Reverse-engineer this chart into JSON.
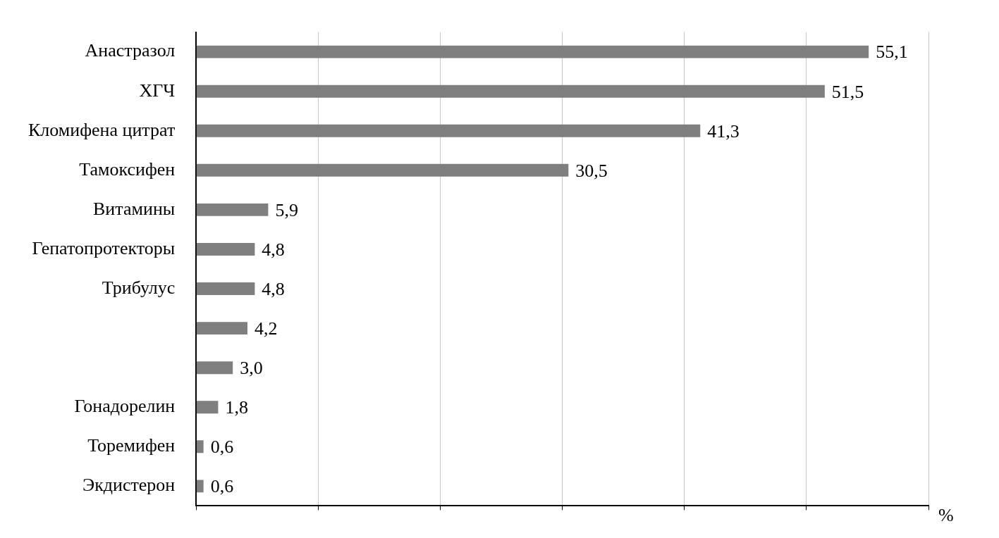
{
  "chart_data": {
    "type": "bar",
    "orientation": "horizontal",
    "categories": [
      "Анастразол",
      "ХГЧ",
      "Кломифена цитрат",
      "Тамоксифен",
      "Витамины",
      "Гепатопротекторы",
      "Трибулус",
      null,
      null,
      "Гонадорелин",
      "Торемифен",
      "Экдистерон"
    ],
    "values": [
      55.1,
      51.5,
      41.3,
      30.5,
      5.9,
      4.8,
      4.8,
      4.2,
      3.0,
      1.8,
      0.6,
      0.6
    ],
    "value_labels": [
      "55,1",
      "51,5",
      "41,3",
      "30,5",
      "5,9",
      "4,8",
      "4,8",
      "4,2",
      "3,0",
      "1,8",
      "0,6",
      "0,6"
    ],
    "color": "#7f7f7f",
    "xlim": [
      0,
      60
    ],
    "xticks": [
      {
        "value": 0,
        "label": null
      },
      {
        "value": 10,
        "label": null
      },
      {
        "value": 20,
        "label": null
      },
      {
        "value": 30,
        "label": null
      },
      {
        "value": 40,
        "label": null
      },
      {
        "value": 50,
        "label": null
      },
      {
        "value": 60,
        "label": null
      }
    ],
    "xlabel": "%",
    "grid": "x",
    "tick_labels": "y"
  }
}
